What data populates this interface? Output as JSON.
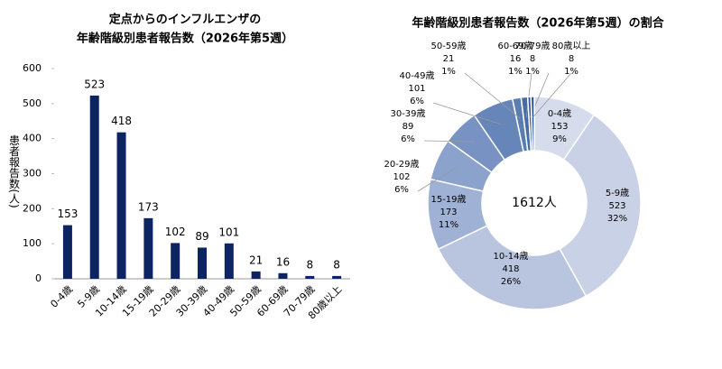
{
  "chart_data": [
    {
      "type": "bar",
      "title": [
        "定点からのインフルエンザの",
        "年齢階級別患者報告数（2026年第5週）"
      ],
      "y_label": "患者報告数(人)",
      "categories": [
        "0-4歳",
        "5-9歳",
        "10-14歳",
        "15-19歳",
        "20-29歳",
        "30-39歳",
        "40-49歳",
        "50-59歳",
        "60-69歳",
        "70-79歳",
        "80歳以上"
      ],
      "values": [
        153,
        523,
        418,
        173,
        102,
        89,
        101,
        21,
        16,
        8,
        8
      ],
      "color": "#0c2461",
      "ylim": [
        0,
        600
      ],
      "yticks": [
        0,
        100,
        200,
        300,
        400,
        500,
        600
      ],
      "grid": false
    },
    {
      "type": "donut",
      "title": "年齢階級別患者報告数（2026年第5週）の割合",
      "center_label": "1612人",
      "categories": [
        "0-4歳",
        "5-9歳",
        "10-14歳",
        "15-19歳",
        "20-29歳",
        "30-39歳",
        "40-49歳",
        "50-59歳",
        "60-69歳",
        "70-79歳",
        "80歳以上"
      ],
      "values": [
        153,
        523,
        418,
        173,
        102,
        89,
        101,
        21,
        16,
        8,
        8
      ],
      "percent_labels": [
        "9%",
        "32%",
        "26%",
        "11%",
        "6%",
        "6%",
        "6%",
        "1%",
        "1%",
        "1%",
        "1%"
      ],
      "colors": [
        "#d6dcec",
        "#c9d1e6",
        "#b9c5df",
        "#9fb1d5",
        "#8aa2cc",
        "#7893c3",
        "#6686b9",
        "#5a7db2",
        "#4a6ca4",
        "#3c5e98",
        "#2c4f8b"
      ]
    }
  ]
}
